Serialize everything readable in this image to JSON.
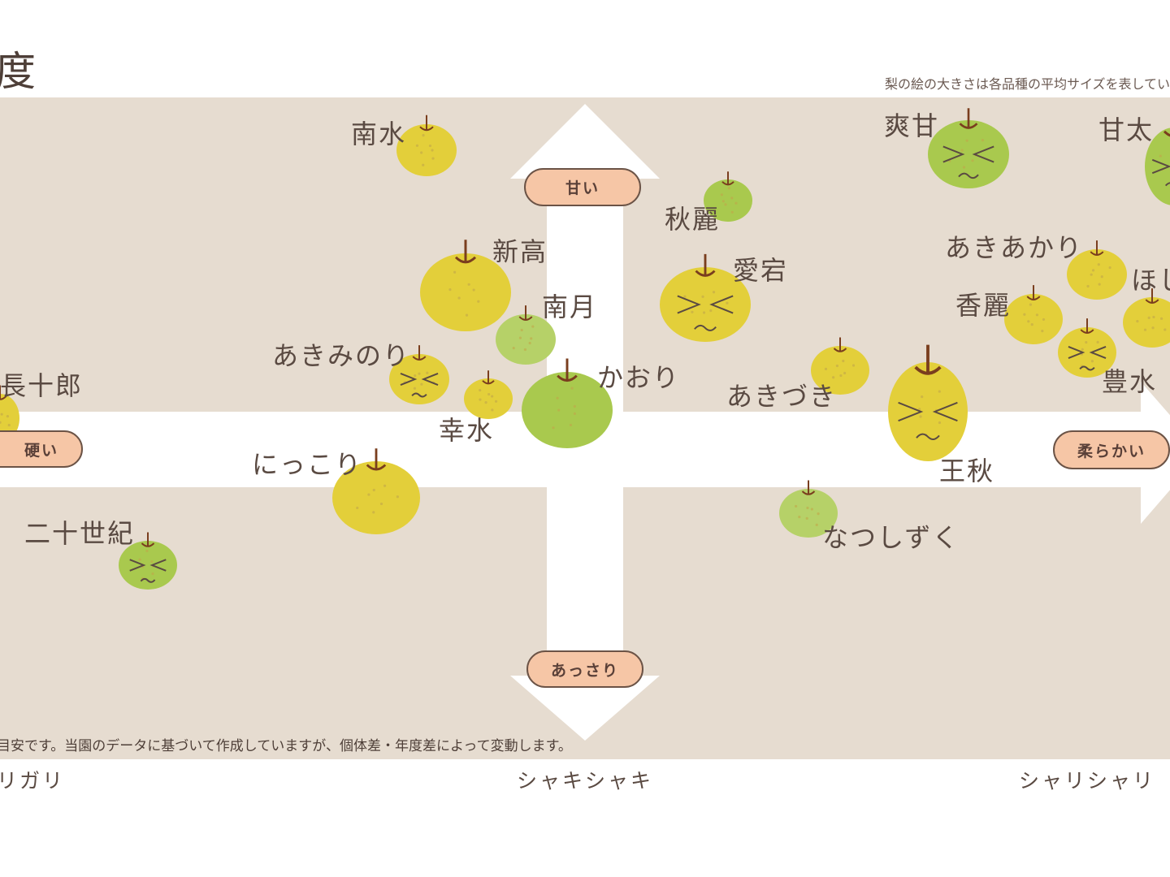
{
  "title": "度",
  "size_note": "梨の絵の大きさは各品種の平均サイズを表してい",
  "footnote": "目安です。当園のデータに基づいて作成していますが、個体差・年度差によって変動します。",
  "axes": {
    "top": "甘い",
    "bottom": "あっさり",
    "left": "硬い",
    "right": "柔らかい"
  },
  "texture_labels": [
    "リガリ",
    "シャキシャキ",
    "シャリシャリ"
  ],
  "colors": {
    "panel": "#e6dcd0",
    "pill": "#f6c6a6",
    "yellow_pear": "#e3cf3a",
    "green_pear": "#a9c94e",
    "light_green_pear": "#b6d168",
    "stem": "#7a3e1e"
  },
  "pears": [
    {
      "name": "南水",
      "color": "yellow",
      "face": false
    },
    {
      "name": "爽甘",
      "color": "green",
      "face": true
    },
    {
      "name": "甘太",
      "color": "green",
      "face": true
    },
    {
      "name": "秋麗",
      "color": "green",
      "face": false
    },
    {
      "name": "あきあかり",
      "color": "yellow",
      "face": false
    },
    {
      "name": "ほし",
      "color": "yellow",
      "face": false
    },
    {
      "name": "新高",
      "color": "yellow",
      "face": false
    },
    {
      "name": "南月",
      "color": "light_green",
      "face": false
    },
    {
      "name": "愛宕",
      "color": "yellow",
      "face": true
    },
    {
      "name": "香麗",
      "color": "yellow",
      "face": false
    },
    {
      "name": "豊水",
      "color": "yellow",
      "face": true
    },
    {
      "name": "あきみのり",
      "color": "yellow",
      "face": true
    },
    {
      "name": "幸水",
      "color": "yellow",
      "face": false
    },
    {
      "name": "かおり",
      "color": "green",
      "face": false
    },
    {
      "name": "あきづき",
      "color": "yellow",
      "face": false
    },
    {
      "name": "長十郎",
      "color": "yellow",
      "face": false
    },
    {
      "name": "王秋",
      "color": "yellow",
      "face": true
    },
    {
      "name": "にっこり",
      "color": "yellow",
      "face": false
    },
    {
      "name": "なつしずく",
      "color": "light_green",
      "face": false
    },
    {
      "name": "二十世紀",
      "color": "green",
      "face": true
    }
  ]
}
